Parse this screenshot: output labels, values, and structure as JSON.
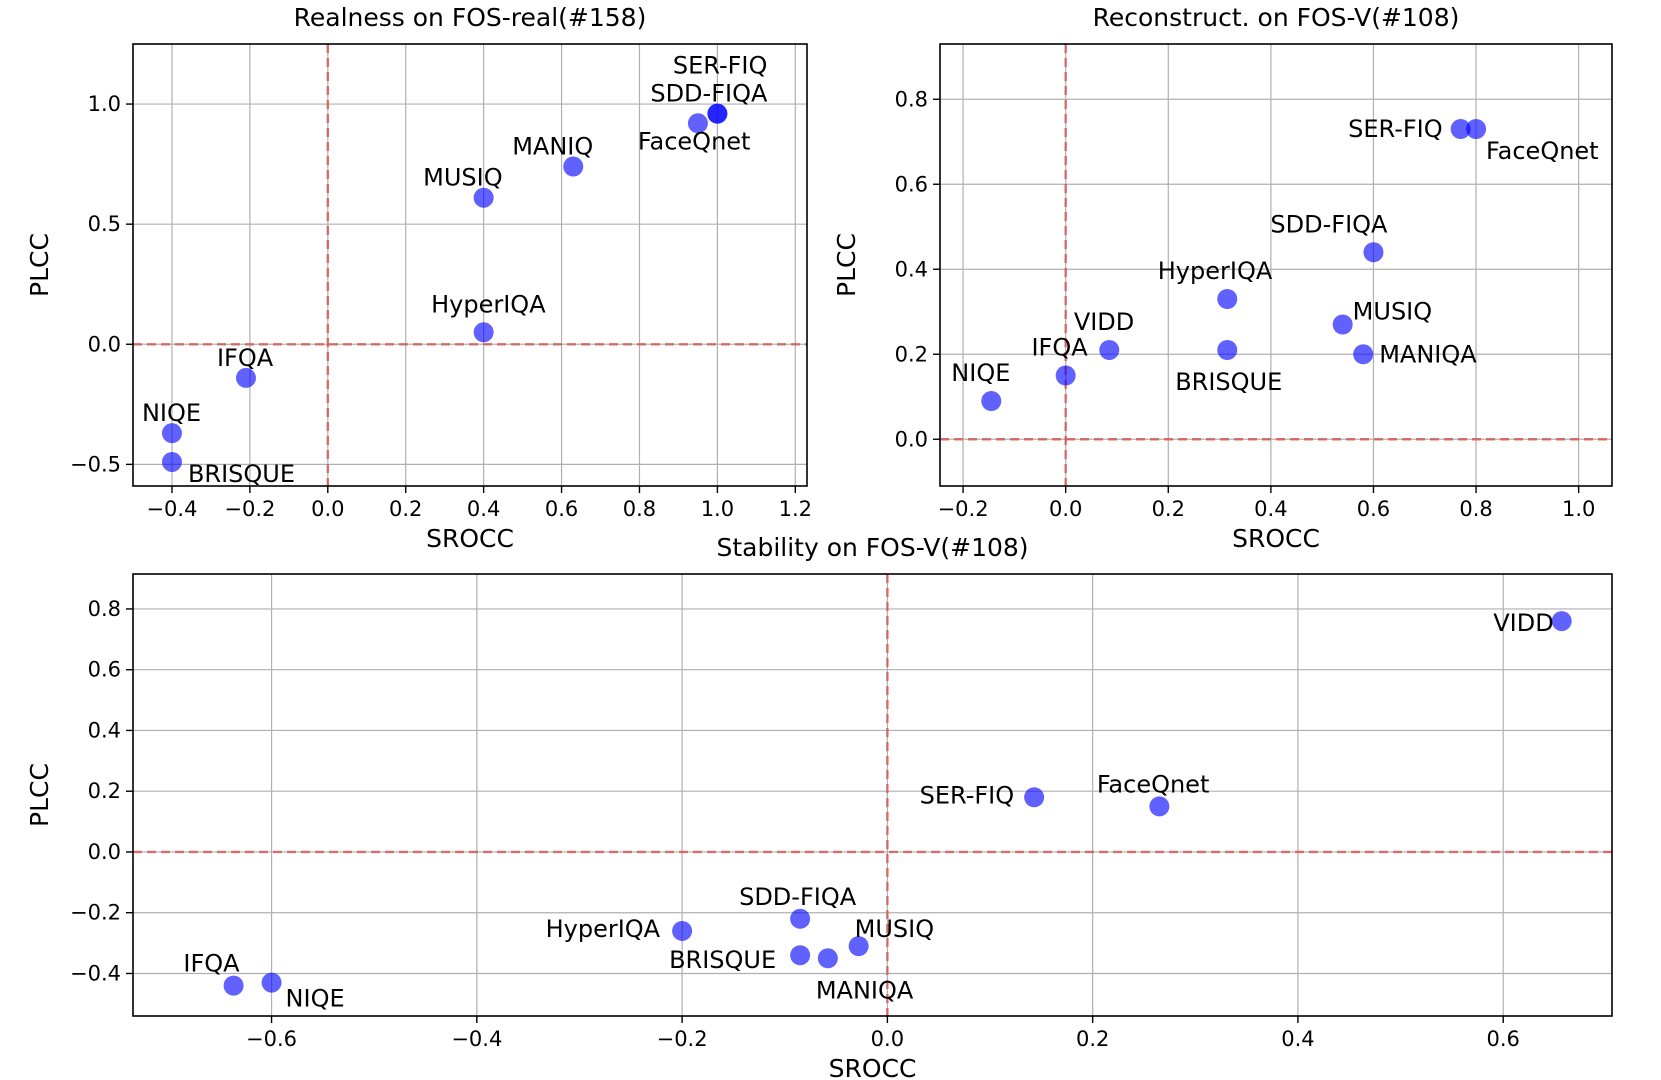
{
  "chart_data": [
    {
      "type": "scatter",
      "title": "Realness on FOS-real(#158)",
      "xlabel": "SROCC",
      "ylabel": "PLCC",
      "xlim": [
        -0.5,
        1.23
      ],
      "ylim": [
        -0.59,
        1.25
      ],
      "xticks": [
        -0.4,
        -0.2,
        0.0,
        0.2,
        0.4,
        0.6,
        0.8,
        1.0,
        1.2
      ],
      "xtick_labels": [
        "−0.4",
        "−0.2",
        "0.0",
        "0.2",
        "0.4",
        "0.6",
        "0.8",
        "1.0",
        "1.2"
      ],
      "yticks": [
        -0.5,
        0.0,
        0.5,
        1.0
      ],
      "ytick_labels": [
        "−0.5",
        "0.0",
        "0.5",
        "1.0"
      ],
      "grid": true,
      "reference_lines": {
        "x": 0.0,
        "y": 0.0
      },
      "points": [
        {
          "label": "SER-FIQ",
          "x": 1.0,
          "y": 0.96,
          "anchor": "end",
          "dx": 50,
          "dy": -40
        },
        {
          "label": "SDD-FIQA",
          "x": 1.0,
          "y": 0.96,
          "anchor": "end",
          "dx": 50,
          "dy": -12
        },
        {
          "label": "FaceQnet",
          "x": 0.95,
          "y": 0.92,
          "anchor": "start",
          "dx": -60,
          "dy": 26
        },
        {
          "label": "MANIQ",
          "x": 0.63,
          "y": 0.74,
          "anchor": "end",
          "dx": 20,
          "dy": -12
        },
        {
          "label": "MUSIQ",
          "x": 0.4,
          "y": 0.61,
          "anchor": "end",
          "dx": 19,
          "dy": -12
        },
        {
          "label": "HyperIQA",
          "x": 0.4,
          "y": 0.05,
          "anchor": "end",
          "dx": 62,
          "dy": -20
        },
        {
          "label": "IFQA",
          "x": -0.21,
          "y": -0.14,
          "anchor": "start",
          "dx": -29,
          "dy": -12
        },
        {
          "label": "NIQE",
          "x": -0.4,
          "y": -0.37,
          "anchor": "start",
          "dx": -30,
          "dy": -12
        },
        {
          "label": "BRISQUE",
          "x": -0.4,
          "y": -0.49,
          "anchor": "start",
          "dx": 16,
          "dy": 20
        }
      ]
    },
    {
      "type": "scatter",
      "title": "Reconstruct. on FOS-V(#108)",
      "xlabel": "SROCC",
      "ylabel": "PLCC",
      "xlim": [
        -0.245,
        1.065
      ],
      "ylim": [
        -0.11,
        0.93
      ],
      "xticks": [
        -0.2,
        0.0,
        0.2,
        0.4,
        0.6,
        0.8,
        1.0
      ],
      "xtick_labels": [
        "−0.2",
        "0.0",
        "0.2",
        "0.4",
        "0.6",
        "0.8",
        "1.0"
      ],
      "yticks": [
        0.0,
        0.2,
        0.4,
        0.6,
        0.8
      ],
      "ytick_labels": [
        "0.0",
        "0.2",
        "0.4",
        "0.6",
        "0.8"
      ],
      "grid": true,
      "reference_lines": {
        "x": 0.0,
        "y": 0.0
      },
      "points": [
        {
          "label": "SER-FIQ",
          "x": 0.77,
          "y": 0.73,
          "anchor": "end",
          "dx": -18,
          "dy": 8
        },
        {
          "label": "FaceQnet",
          "x": 0.8,
          "y": 0.73,
          "anchor": "start",
          "dx": 10,
          "dy": 30
        },
        {
          "label": "SDD-FIQA",
          "x": 0.6,
          "y": 0.44,
          "anchor": "end",
          "dx": 14,
          "dy": -20
        },
        {
          "label": "HyperIQA",
          "x": 0.315,
          "y": 0.33,
          "anchor": "end",
          "dx": 45,
          "dy": -20
        },
        {
          "label": "MUSIQ",
          "x": 0.54,
          "y": 0.27,
          "anchor": "start",
          "dx": 10,
          "dy": -5
        },
        {
          "label": "MANIQA",
          "x": 0.58,
          "y": 0.2,
          "anchor": "start",
          "dx": 16,
          "dy": 8
        },
        {
          "label": "BRISQUE",
          "x": 0.315,
          "y": 0.21,
          "anchor": "end",
          "dx": 55,
          "dy": 40
        },
        {
          "label": "VIDD",
          "x": 0.085,
          "y": 0.21,
          "anchor": "end",
          "dx": 25,
          "dy": -20
        },
        {
          "label": "IFQA",
          "x": 0.0,
          "y": 0.15,
          "anchor": "end",
          "dx": 22,
          "dy": -20
        },
        {
          "label": "NIQE",
          "x": -0.145,
          "y": 0.09,
          "anchor": "start",
          "dx": -40,
          "dy": -20
        }
      ]
    },
    {
      "type": "scatter",
      "title": "Stability on FOS-V(#108)",
      "xlabel": "SROCC",
      "ylabel": "PLCC",
      "xlim": [
        -0.735,
        0.706
      ],
      "ylim": [
        -0.54,
        0.915
      ],
      "xticks": [
        -0.6,
        -0.4,
        -0.2,
        0.0,
        0.2,
        0.4,
        0.6
      ],
      "xtick_labels": [
        "−0.6",
        "−0.4",
        "−0.2",
        "0.0",
        "0.2",
        "0.4",
        "0.6"
      ],
      "yticks": [
        -0.4,
        -0.2,
        0.0,
        0.2,
        0.4,
        0.6,
        0.8
      ],
      "ytick_labels": [
        "−0.4",
        "−0.2",
        "0.0",
        "0.2",
        "0.4",
        "0.6",
        "0.8"
      ],
      "grid": true,
      "reference_lines": {
        "x": 0.0,
        "y": 0.0
      },
      "points": [
        {
          "label": "VIDD",
          "x": 0.657,
          "y": 0.76,
          "anchor": "end",
          "dx": -8,
          "dy": 10
        },
        {
          "label": "SER-FIQ",
          "x": 0.143,
          "y": 0.18,
          "anchor": "end",
          "dx": -20,
          "dy": 6
        },
        {
          "label": "FaceQnet",
          "x": 0.265,
          "y": 0.15,
          "anchor": "end",
          "dx": 50,
          "dy": -14
        },
        {
          "label": "SDD-FIQA",
          "x": -0.085,
          "y": -0.22,
          "anchor": "end",
          "dx": 56,
          "dy": -14
        },
        {
          "label": "MUSIQ",
          "x": -0.028,
          "y": -0.31,
          "anchor": "start",
          "dx": -4,
          "dy": -9
        },
        {
          "label": "HyperIQA",
          "x": -0.2,
          "y": -0.26,
          "anchor": "end",
          "dx": -22,
          "dy": 6
        },
        {
          "label": "BRISQUE",
          "x": -0.085,
          "y": -0.34,
          "anchor": "end",
          "dx": -24,
          "dy": 13
        },
        {
          "label": "MANIQA",
          "x": -0.058,
          "y": -0.35,
          "anchor": "start",
          "dx": -12,
          "dy": 40
        },
        {
          "label": "IFQA",
          "x": -0.637,
          "y": -0.44,
          "anchor": "end",
          "dx": 6,
          "dy": -14
        },
        {
          "label": "NIQE",
          "x": -0.6,
          "y": -0.43,
          "anchor": "start",
          "dx": 14,
          "dy": 24
        }
      ]
    }
  ]
}
